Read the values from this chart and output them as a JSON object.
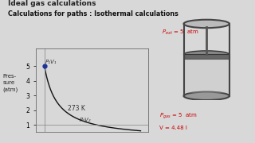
{
  "title_top": "Ideal gas calculations",
  "subtitle": "Calculations for paths : Isothermal calculations",
  "bg_color": "#d8d8d8",
  "plot_bg": "#d8d8d8",
  "curve_color": "#111111",
  "point_color": "#1a3399",
  "p1": 5.0,
  "v1": 0.9,
  "p2": 1.0,
  "nRT": 4.5,
  "v_start": 0.9,
  "v_end": 7.5,
  "ylim": [
    0.55,
    6.2
  ],
  "xlim": [
    0.3,
    8.0
  ],
  "temp_label": "273 K",
  "p1v1_label": "P₁V₁",
  "p2v2_label": "P₂V₂",
  "yticks": [
    1,
    2,
    3,
    4,
    5
  ],
  "hline_y": 1.0,
  "vline_x": 0.9,
  "annotation_color_red": "#cc0000",
  "annotation_color_dark": "#333333",
  "ylabel_lines": [
    "Pres-",
    "sure",
    "(atm)"
  ]
}
